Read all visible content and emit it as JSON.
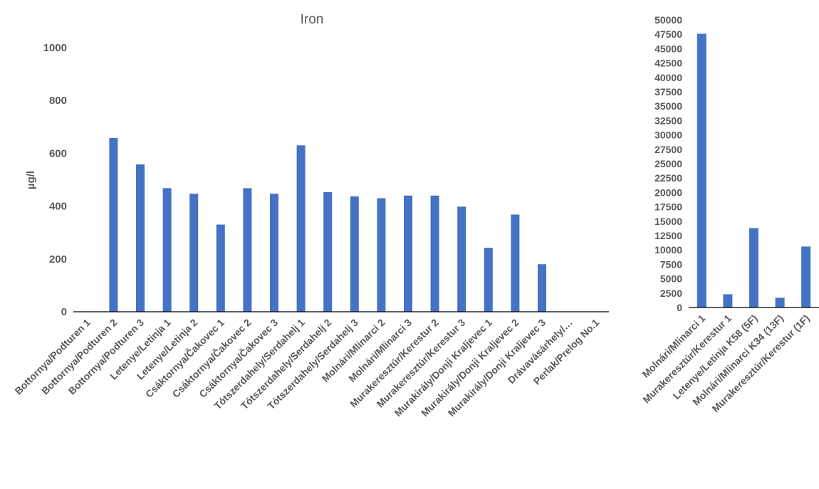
{
  "chart_data": [
    {
      "type": "bar",
      "title": "Iron",
      "ylabel": "µg/l",
      "xlabel": "",
      "ylim": [
        0,
        1000
      ],
      "yticks": [
        "0",
        "200",
        "400",
        "600",
        "800",
        "1000"
      ],
      "categories": [
        "Bottornya/Podturen 1",
        "Bottornya/Podturen 2",
        "Bottornya/Podturen 3",
        "Letenye/Letinja 1",
        "Letenye/Letinja 2",
        "Csáktornya/Čakovec 1",
        "Csáktornya/Čakovec 2",
        "Csáktornya/Čakovec 3",
        "Tótszerdahely/Serdahelj 1",
        "Tótszerdahely/Serdahelj 2",
        "Tótszerdahely/Serdahelj 3",
        "Molnári/Mlinarci 2",
        "Molnári/Mlinarci 3",
        "Murakeresztúr/Kerestur 2",
        "Murakeresztúr/Kerestur 3",
        "Murakirály/Donji Kraljevec 1",
        "Murakirály/Donji Kraljevec 2",
        "Murakirály/Donji Kraljevec 3",
        "Drávavásárhely/…",
        "Perlak/Prelog No.1"
      ],
      "values": [
        0,
        658,
        558,
        468,
        447,
        330,
        468,
        447,
        630,
        453,
        437,
        430,
        440,
        440,
        398,
        242,
        368,
        180,
        0,
        0
      ],
      "color": "#4472c4",
      "grid": false,
      "legend": "none"
    },
    {
      "type": "bar",
      "title": "",
      "ylabel": "",
      "xlabel": "",
      "ylim": [
        0,
        50000
      ],
      "yticks": [
        "0",
        "2500",
        "5000",
        "7500",
        "10000",
        "12500",
        "15000",
        "17500",
        "20000",
        "22500",
        "25000",
        "27500",
        "30000",
        "32500",
        "35000",
        "37500",
        "40000",
        "42500",
        "45000",
        "47500",
        "50000"
      ],
      "categories": [
        "Molnári/Mlinarci 1",
        "Murakeresztúr/Kerestur 1",
        "Letenye/Letinja K58 (5F)",
        "Molnári/Mlinarci K34 (13F)",
        "Murakeresztúr/Kerestur (1F)"
      ],
      "values": [
        47600,
        2300,
        13800,
        1700,
        10600
      ],
      "color": "#4472c4",
      "grid": false,
      "legend": "none"
    }
  ]
}
